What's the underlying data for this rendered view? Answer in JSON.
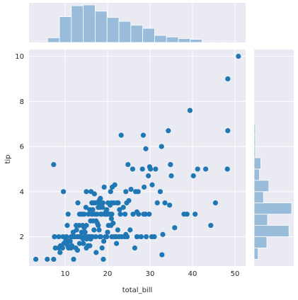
{
  "chart_data": {
    "type": "scatter",
    "subtype": "jointplot",
    "xlabel": "total_bill",
    "ylabel": "tip",
    "xlim": [
      1.5,
      52.5
    ],
    "ylim": [
      0.7,
      10.3
    ],
    "x_ticks": [
      10,
      20,
      30,
      40,
      50
    ],
    "y_ticks": [
      2,
      4,
      6,
      8,
      10
    ],
    "grid": true,
    "colors": {
      "point": "#1f77b4",
      "hist_bar": "#98bcd9",
      "hist_edge": "#ffffff",
      "panel_bg": "#eaeaf2"
    },
    "points": [
      [
        3.1,
        1.0
      ],
      [
        5.8,
        1.0
      ],
      [
        7.3,
        1.0
      ],
      [
        7.5,
        2.0
      ],
      [
        7.7,
        1.5
      ],
      [
        7.3,
        5.2
      ],
      [
        8.5,
        1.5
      ],
      [
        8.5,
        2.0
      ],
      [
        8.8,
        1.3
      ],
      [
        8.9,
        1.6
      ],
      [
        9.6,
        4.0
      ],
      [
        9.4,
        1.5
      ],
      [
        9.5,
        2.0
      ],
      [
        9.7,
        1.7
      ],
      [
        10.1,
        1.8
      ],
      [
        10.3,
        1.7
      ],
      [
        10.3,
        2.0
      ],
      [
        10.6,
        1.6
      ],
      [
        10.8,
        1.5
      ],
      [
        10.5,
        2.5
      ],
      [
        10.7,
        3.0
      ],
      [
        11.0,
        1.8
      ],
      [
        11.2,
        1.8
      ],
      [
        11.4,
        1.5
      ],
      [
        11.4,
        2.0
      ],
      [
        11.6,
        1.6
      ],
      [
        11.9,
        2.2
      ],
      [
        12.0,
        1.0
      ],
      [
        12.0,
        2.0
      ],
      [
        12.3,
        2.0
      ],
      [
        12.5,
        1.5
      ],
      [
        12.7,
        2.3
      ],
      [
        12.9,
        1.4
      ],
      [
        12.9,
        2.0
      ],
      [
        13.0,
        2.0
      ],
      [
        13.3,
        2.5
      ],
      [
        13.4,
        1.7
      ],
      [
        13.4,
        2.0
      ],
      [
        13.4,
        3.0
      ],
      [
        13.0,
        3.5
      ],
      [
        13.8,
        2.0
      ],
      [
        13.9,
        2.2
      ],
      [
        14.0,
        3.0
      ],
      [
        14.1,
        2.5
      ],
      [
        14.3,
        1.7
      ],
      [
        14.5,
        2.0
      ],
      [
        14.5,
        3.0
      ],
      [
        14.5,
        2.4
      ],
      [
        14.7,
        2.2
      ],
      [
        14.8,
        2.0
      ],
      [
        14.9,
        3.3
      ],
      [
        15.0,
        1.5
      ],
      [
        15.0,
        2.5
      ],
      [
        15.0,
        4.0
      ],
      [
        15.4,
        2.0
      ],
      [
        15.4,
        1.6
      ],
      [
        15.5,
        3.0
      ],
      [
        15.7,
        2.0
      ],
      [
        15.8,
        1.6
      ],
      [
        15.8,
        3.2
      ],
      [
        16.0,
        2.7
      ],
      [
        16.0,
        1.9
      ],
      [
        16.2,
        2.0
      ],
      [
        16.3,
        3.5
      ],
      [
        16.3,
        3.0
      ],
      [
        16.4,
        2.0
      ],
      [
        16.5,
        3.2
      ],
      [
        16.6,
        3.5
      ],
      [
        16.8,
        2.3
      ],
      [
        16.9,
        3.9
      ],
      [
        17.0,
        3.0
      ],
      [
        17.1,
        3.5
      ],
      [
        17.3,
        2.7
      ],
      [
        17.3,
        1.3
      ],
      [
        17.5,
        3.0
      ],
      [
        17.6,
        2.6
      ],
      [
        17.8,
        3.3
      ],
      [
        17.8,
        3.5
      ],
      [
        17.8,
        2.5
      ],
      [
        18.0,
        3.6
      ],
      [
        18.2,
        2.0
      ],
      [
        18.2,
        3.3
      ],
      [
        18.3,
        3.7
      ],
      [
        18.4,
        3.0
      ],
      [
        18.4,
        2.0
      ],
      [
        18.5,
        3.5
      ],
      [
        18.6,
        3.0
      ],
      [
        18.7,
        1.5
      ],
      [
        18.8,
        3.3
      ],
      [
        18.9,
        3.5
      ],
      [
        19.0,
        1.0
      ],
      [
        19.1,
        1.8
      ],
      [
        19.2,
        4.2
      ],
      [
        19.3,
        3.0
      ],
      [
        19.4,
        3.0
      ],
      [
        19.5,
        2.0
      ],
      [
        19.6,
        3.1
      ],
      [
        19.7,
        3.0
      ],
      [
        19.8,
        3.2
      ],
      [
        19.9,
        3.0
      ],
      [
        20.0,
        2.2
      ],
      [
        20.1,
        3.5
      ],
      [
        20.2,
        2.5
      ],
      [
        20.3,
        3.0
      ],
      [
        20.5,
        3.0
      ],
      [
        20.6,
        3.4
      ],
      [
        20.7,
        4.0
      ],
      [
        20.8,
        2.5
      ],
      [
        20.9,
        3.5
      ],
      [
        21.0,
        3.0
      ],
      [
        21.0,
        2.0
      ],
      [
        21.1,
        4.2
      ],
      [
        21.5,
        3.5
      ],
      [
        21.6,
        2.0
      ],
      [
        21.7,
        4.3
      ],
      [
        22.0,
        2.0
      ],
      [
        22.2,
        3.5
      ],
      [
        22.4,
        2.3
      ],
      [
        22.5,
        3.5
      ],
      [
        22.7,
        2.0
      ],
      [
        22.8,
        3.2
      ],
      [
        23.0,
        3.0
      ],
      [
        23.2,
        6.5
      ],
      [
        23.3,
        2.0
      ],
      [
        23.7,
        3.3
      ],
      [
        24.0,
        2.0
      ],
      [
        24.1,
        3.0
      ],
      [
        24.3,
        4.0
      ],
      [
        24.5,
        3.5
      ],
      [
        24.6,
        2.0
      ],
      [
        24.8,
        5.2
      ],
      [
        25.0,
        3.6
      ],
      [
        25.3,
        2.3
      ],
      [
        25.5,
        4.1
      ],
      [
        25.9,
        5.0
      ],
      [
        26.0,
        3.0
      ],
      [
        26.4,
        1.5
      ],
      [
        26.6,
        4.0
      ],
      [
        26.9,
        3.1
      ],
      [
        27.0,
        2.0
      ],
      [
        27.2,
        4.0
      ],
      [
        27.3,
        3.0
      ],
      [
        27.9,
        2.0
      ],
      [
        28.2,
        5.0
      ],
      [
        28.4,
        6.5
      ],
      [
        28.5,
        3.0
      ],
      [
        28.6,
        4.2
      ],
      [
        28.9,
        3.0
      ],
      [
        29.0,
        5.9
      ],
      [
        29.1,
        2.0
      ],
      [
        29.6,
        4.7
      ],
      [
        29.8,
        3.0
      ],
      [
        29.9,
        5.1
      ],
      [
        30.1,
        5.0
      ],
      [
        30.4,
        2.0
      ],
      [
        30.5,
        4.3
      ],
      [
        31.0,
        2.0
      ],
      [
        31.3,
        5.0
      ],
      [
        31.7,
        3.5
      ],
      [
        32.4,
        4.0
      ],
      [
        32.7,
        6.0
      ],
      [
        32.8,
        1.2
      ],
      [
        33.0,
        2.1
      ],
      [
        33.5,
        3.5
      ],
      [
        34.3,
        6.7
      ],
      [
        34.6,
        3.4
      ],
      [
        34.8,
        5.2
      ],
      [
        35.0,
        4.7
      ],
      [
        35.8,
        2.4
      ],
      [
        38.0,
        3.0
      ],
      [
        38.7,
        3.0
      ],
      [
        39.4,
        7.6
      ],
      [
        40.2,
        4.7
      ],
      [
        40.6,
        3.0
      ],
      [
        41.2,
        5.0
      ],
      [
        43.1,
        5.0
      ],
      [
        44.3,
        2.5
      ],
      [
        45.4,
        3.5
      ],
      [
        48.2,
        5.0
      ],
      [
        48.3,
        6.7
      ],
      [
        48.3,
        9.0
      ],
      [
        50.8,
        10.0
      ],
      [
        7.5,
        2.0
      ],
      [
        10.3,
        1.9
      ],
      [
        13.6,
        2.0
      ],
      [
        15.1,
        1.9
      ],
      [
        17.2,
        2.0
      ],
      [
        19.8,
        2.0
      ],
      [
        21.3,
        2.6
      ],
      [
        24.3,
        2.1
      ],
      [
        26.9,
        2.0
      ],
      [
        11.7,
        2.0
      ],
      [
        12.6,
        2.5
      ],
      [
        13.8,
        3.0
      ],
      [
        16.1,
        4.0
      ],
      [
        18.0,
        2.3
      ],
      [
        20.9,
        2.8
      ],
      [
        22.1,
        1.7
      ],
      [
        14.2,
        1.9
      ],
      [
        16.6,
        2.7
      ]
    ],
    "x_hist": {
      "bin_edges": [
        3.07,
        5.87,
        8.67,
        11.47,
        14.27,
        17.07,
        19.87,
        22.67,
        25.47,
        28.27,
        31.07,
        33.87,
        36.67,
        39.47,
        42.27,
        45.07,
        47.87,
        50.67
      ],
      "counts": [
        1,
        6,
        33,
        47,
        48,
        40,
        32,
        27,
        22,
        18,
        9,
        7,
        5,
        4,
        1,
        1,
        1
      ]
    },
    "y_hist": {
      "bin_edges": [
        1.0,
        1.5,
        2.0,
        2.5,
        3.0,
        3.5,
        4.0,
        4.5,
        5.0,
        5.5,
        6.0,
        6.5,
        7.0
      ],
      "counts": [
        6,
        19,
        52,
        20,
        56,
        14,
        22,
        8,
        10,
        2,
        2,
        2
      ]
    }
  }
}
